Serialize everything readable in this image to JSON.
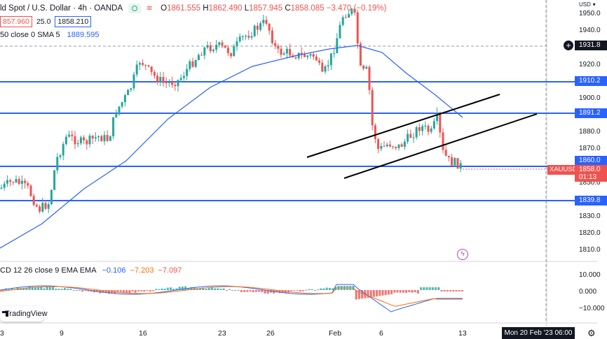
{
  "header": {
    "symbol_title": "ld Spot / U.S. Dollar · 4h · OANDA",
    "ohlc": {
      "o_label": "O",
      "o": "1861.555",
      "h_label": "H",
      "h": "1862.490",
      "l_label": "L",
      "l": "1857.945",
      "c_label": "C",
      "c": "1858.085",
      "change": "−3.470 (−0.19%)"
    },
    "bid": "857.960",
    "spread": "25.0",
    "ask": "1858.210",
    "sma_label": "50 close 0 SMA 5",
    "sma_value": "1889.595"
  },
  "macd": {
    "label": "CD 12 26 close 9 EMA EMA",
    "hist": "−0.106",
    "macd": "−7.203",
    "signal": "−7.097",
    "scale": [
      "10.000",
      "0.000",
      "−10.000"
    ]
  },
  "brand": {
    "logo_text": "TradingView"
  },
  "price_axis": {
    "currency": "USD",
    "ticks": [
      "1950.0",
      "1940.0",
      "1920.0",
      "1900.0",
      "1880.0",
      "1870.0",
      "1850.0",
      "1830.0",
      "1820.0",
      "1810.0"
    ],
    "crosshair_price": "1931.8",
    "level_tags": [
      "1910.2",
      "1891.2",
      "1860.0",
      "1839.8"
    ],
    "last_price": "1858.0",
    "countdown": "01:13",
    "symbol_tag": "XAUUSD"
  },
  "time_axis": {
    "labels": [
      "3",
      "9",
      "16",
      "23",
      "26",
      "Feb",
      "6",
      "13"
    ],
    "cursor_time": "Mon 20 Feb '23   06:00"
  },
  "colors": {
    "up": "#26a69a",
    "down": "#ef5350",
    "level_line": "#2962ff",
    "sma": "#2962ff",
    "macd_line": "#2962ff",
    "signal_line": "#ff6d00"
  },
  "icons": {
    "settings": "gear-icon",
    "add_alert": "plus-icon",
    "event": "lightning-icon"
  }
}
